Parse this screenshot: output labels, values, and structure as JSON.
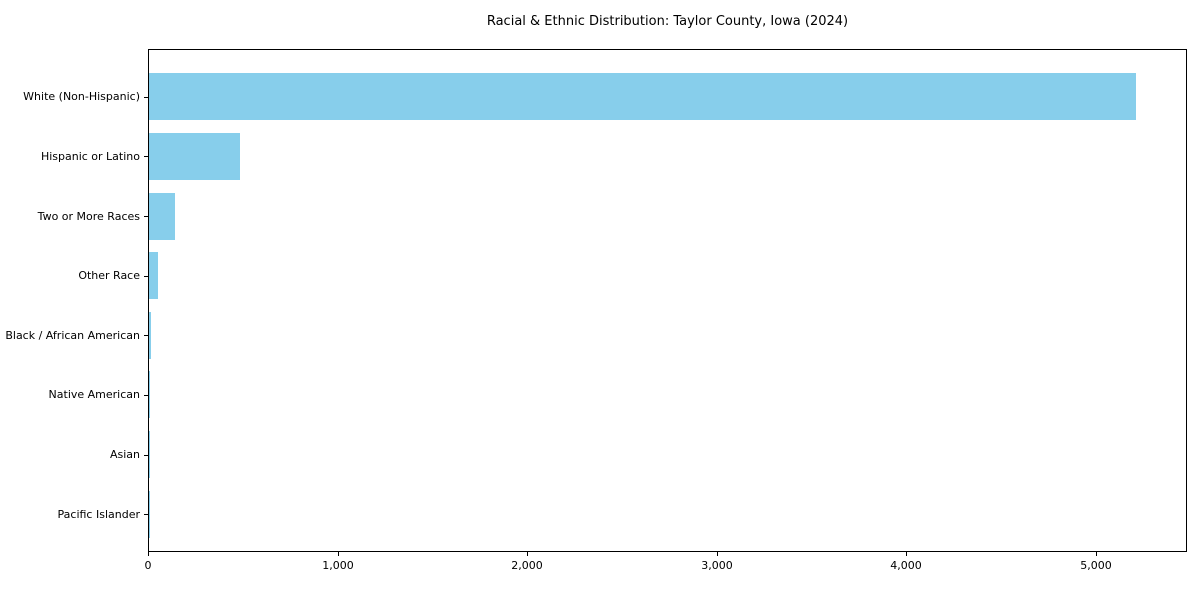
{
  "chart_data": {
    "type": "bar",
    "orientation": "horizontal",
    "title": "Racial & Ethnic Distribution: Taylor County, Iowa (2024)",
    "categories": [
      "White (Non-Hispanic)",
      "Hispanic or Latino",
      "Two or More Races",
      "Other Race",
      "Black / African American",
      "Native American",
      "Asian",
      "Pacific Islander"
    ],
    "values": [
      5216,
      480,
      137,
      47,
      10,
      7,
      4,
      1
    ],
    "xlabel": "",
    "ylabel": "",
    "xlim": [
      0,
      5480
    ],
    "xticks": [
      0,
      1000,
      2000,
      3000,
      4000,
      5000
    ],
    "xtick_labels": [
      "0",
      "1,000",
      "2,000",
      "3,000",
      "4,000",
      "5,000"
    ],
    "bar_color": "#87CEEB",
    "background_color": "#ffffff",
    "axis_color": "#000000",
    "grid": false,
    "legend": null
  }
}
